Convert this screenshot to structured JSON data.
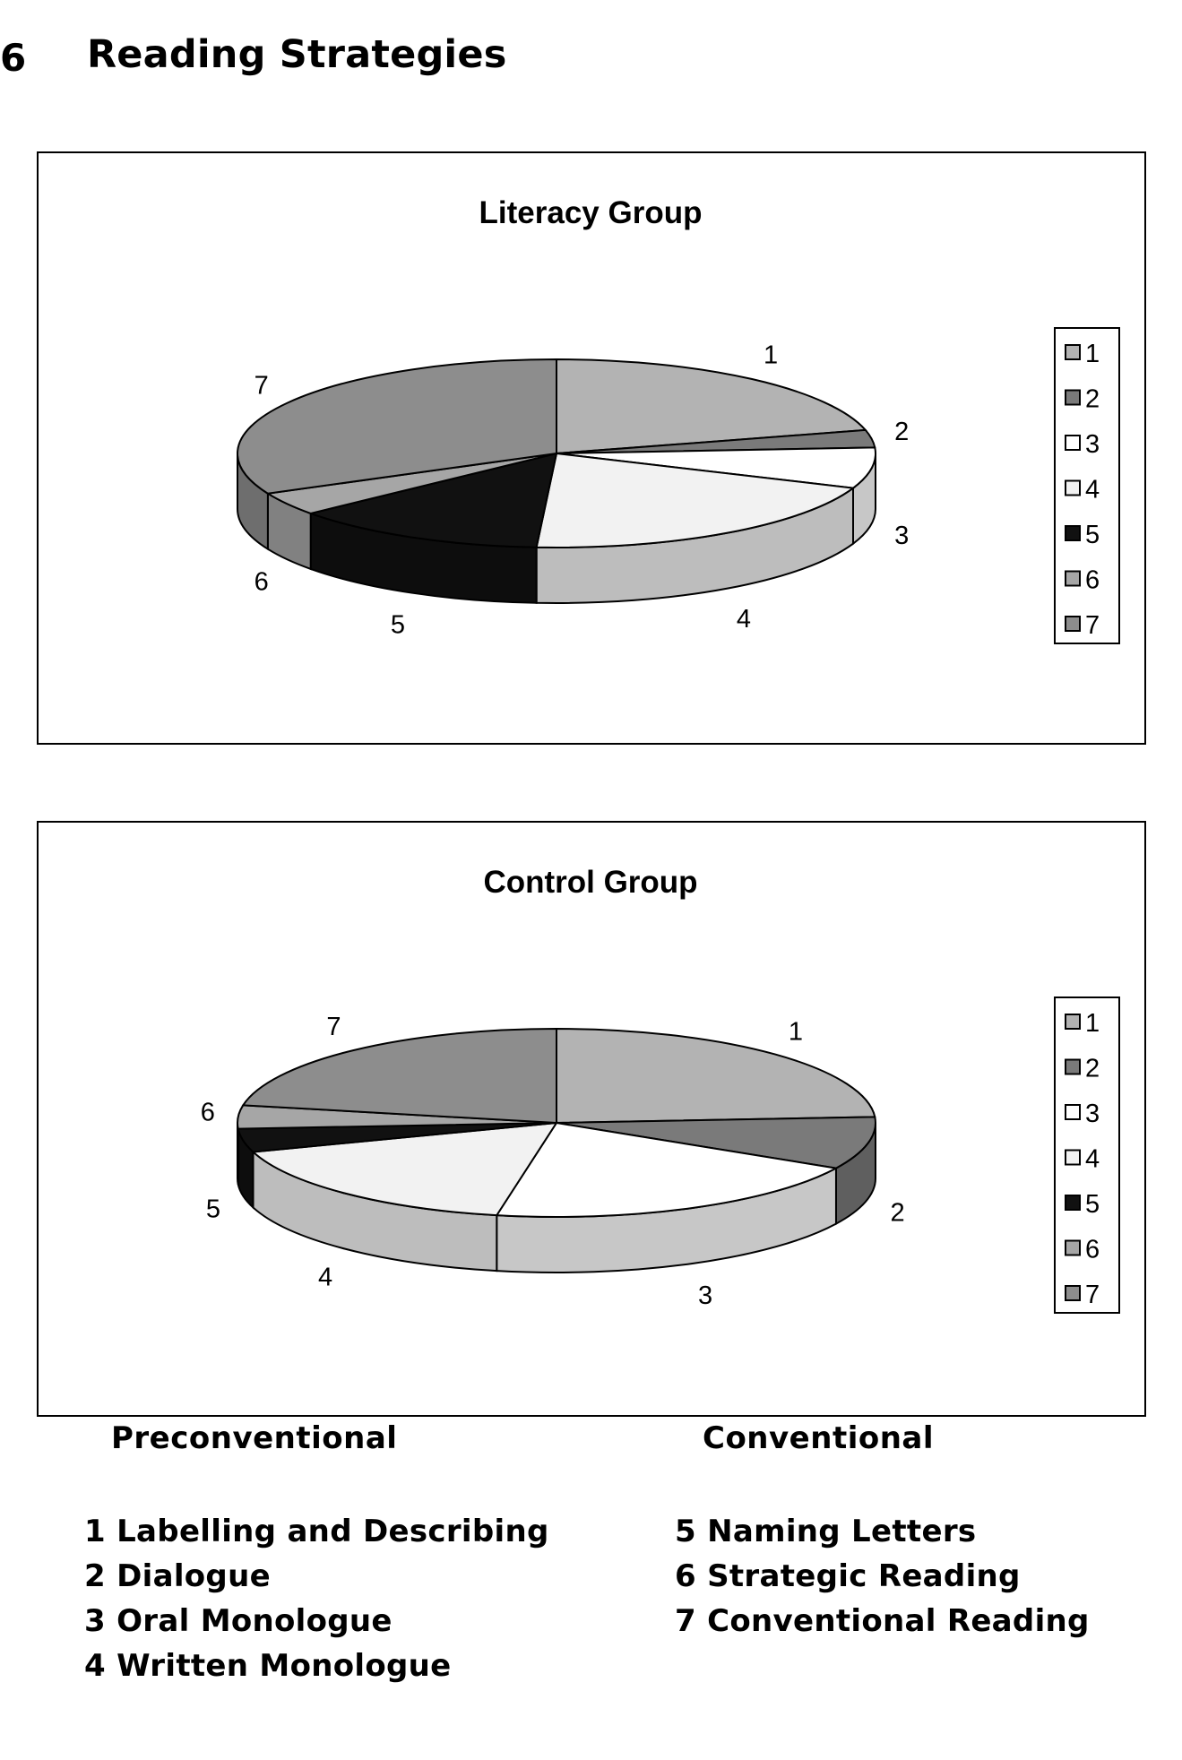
{
  "page": {
    "section_mark": "6",
    "title": "Reading Strategies"
  },
  "colors": {
    "slice_fills": [
      "#b3b3b3",
      "#7a7a7a",
      "#ffffff",
      "#f2f2f2",
      "#111111",
      "#a6a6a6",
      "#8d8d8d"
    ],
    "outline": "#000000"
  },
  "chart_data": [
    {
      "type": "pie",
      "style": "3d",
      "title": "Literacy Group",
      "categories": [
        "1",
        "2",
        "3",
        "4",
        "5",
        "6",
        "7"
      ],
      "values": [
        21,
        3,
        7,
        20,
        13,
        4,
        32
      ],
      "legend": {
        "position": "right",
        "entries": [
          "1",
          "2",
          "3",
          "4",
          "5",
          "6",
          "7"
        ]
      }
    },
    {
      "type": "pie",
      "style": "3d",
      "title": "Control Group",
      "categories": [
        "1",
        "2",
        "3",
        "4",
        "5",
        "6",
        "7"
      ],
      "values": [
        24,
        9,
        20,
        17,
        4,
        4,
        22
      ],
      "legend": {
        "position": "right",
        "entries": [
          "1",
          "2",
          "3",
          "4",
          "5",
          "6",
          "7"
        ]
      }
    }
  ],
  "key": {
    "preconventional": {
      "heading": "Preconventional",
      "items": [
        "1 Labelling and Describing",
        "2 Dialogue",
        "3 Oral Monologue",
        "4 Written Monologue"
      ]
    },
    "conventional": {
      "heading": "Conventional",
      "items": [
        "5 Naming Letters",
        "6 Strategic Reading",
        "7 Conventional Reading"
      ]
    }
  }
}
